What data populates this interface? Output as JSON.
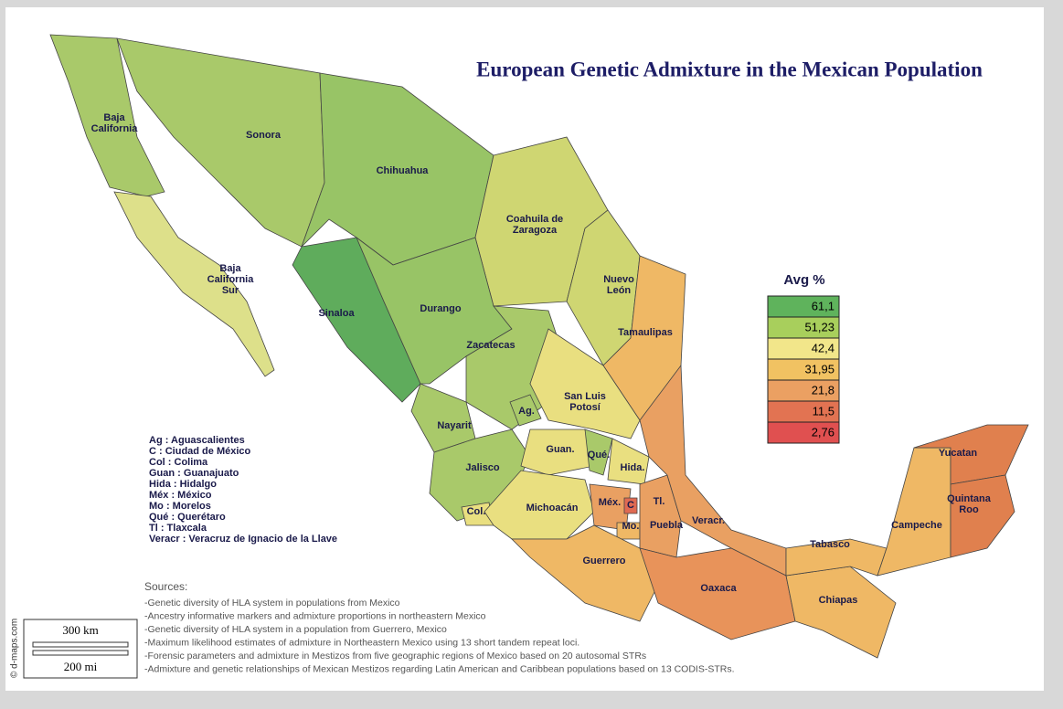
{
  "title": "European Genetic Admixture in the Mexican Population",
  "states": [
    {
      "lines": [
        "Baja",
        "California"
      ],
      "color": "#a9c96a"
    },
    {
      "lines": [
        "Baja",
        "California",
        "Sur"
      ],
      "color": "#dde08a"
    },
    {
      "lines": [
        "Sonora"
      ],
      "color": "#a9c96a"
    },
    {
      "lines": [
        "Chihuahua"
      ],
      "color": "#98c466"
    },
    {
      "lines": [
        "Coahuila de",
        "Zaragoza"
      ],
      "color": "#cfd672"
    },
    {
      "lines": [
        "Nuevo",
        "León"
      ],
      "color": "#cfd672"
    },
    {
      "lines": [
        "Tamaulipas"
      ],
      "color": "#efb865"
    },
    {
      "lines": [
        "Sinaloa"
      ],
      "color": "#5fac5c"
    },
    {
      "lines": [
        "Durango"
      ],
      "color": "#98c466"
    },
    {
      "lines": [
        "Zacatecas"
      ],
      "color": "#a9c96a"
    },
    {
      "lines": [
        "San Luis",
        "Potosí"
      ],
      "color": "#e9df80"
    },
    {
      "lines": [
        "Ag."
      ],
      "color": "#a9c96a"
    },
    {
      "lines": [
        "Nayarit"
      ],
      "color": "#a9c96a"
    },
    {
      "lines": [
        "Jalisco"
      ],
      "color": "#a9c96a"
    },
    {
      "lines": [
        "Guan."
      ],
      "color": "#e9df80"
    },
    {
      "lines": [
        "Qué."
      ],
      "color": "#a9c96a"
    },
    {
      "lines": [
        "Hida."
      ],
      "color": "#e9df80"
    },
    {
      "lines": [
        "Col."
      ],
      "color": "#e9df80"
    },
    {
      "lines": [
        "Michoacán"
      ],
      "color": "#e9df80"
    },
    {
      "lines": [
        "Méx."
      ],
      "color": "#e9a062"
    },
    {
      "lines": [
        "C"
      ],
      "color": "#e06a52"
    },
    {
      "lines": [
        "Tl."
      ],
      "color": "#e06a52"
    },
    {
      "lines": [
        "Mo."
      ],
      "color": "#efb865"
    },
    {
      "lines": [
        "Puebla"
      ],
      "color": "#e9a062"
    },
    {
      "lines": [
        "Veracr."
      ],
      "color": "#e9a062"
    },
    {
      "lines": [
        "Guerrero"
      ],
      "color": "#efb865"
    },
    {
      "lines": [
        "Oaxaca"
      ],
      "color": "#e8935a"
    },
    {
      "lines": [
        "Chiapas"
      ],
      "color": "#efb865"
    },
    {
      "lines": [
        "Tabasco"
      ],
      "color": "#efb865"
    },
    {
      "lines": [
        "Campeche"
      ],
      "color": "#efb865"
    },
    {
      "lines": [
        "Yucatan"
      ],
      "color": "#e0804e"
    },
    {
      "lines": [
        "Quintana",
        "Roo"
      ],
      "color": "#e0804e"
    }
  ],
  "legend": {
    "title": "Avg %",
    "items": [
      {
        "label": "61,1",
        "color": "#5fb35c"
      },
      {
        "label": "51,23",
        "color": "#a8cf5c"
      },
      {
        "label": "42,4",
        "color": "#f2e68a"
      },
      {
        "label": "31,95",
        "color": "#f1c262"
      },
      {
        "label": "21,8",
        "color": "#eba062"
      },
      {
        "label": "11,5",
        "color": "#e27352"
      },
      {
        "label": "2,76",
        "color": "#e05050"
      }
    ]
  },
  "key": [
    "Ag : Aguascalientes",
    "C : Ciudad de México",
    "Col : Colima",
    "Guan : Guanajuato",
    "Hida : Hidalgo",
    "Méx : México",
    "Mo : Morelos",
    "Qué : Querétaro",
    "Tl : Tlaxcala",
    "Veracr : Veracruz de Ignacio de la Llave"
  ],
  "sources": {
    "heading": "Sources:",
    "items": [
      "-Genetic diversity of HLA system in populations from Mexico",
      "-Ancestry informative markers and admixture proportions in northeastern Mexico",
      "-Genetic diversity of HLA system in a population from Guerrero, Mexico",
      "-Maximum likelihood estimates of admixture in Northeastern Mexico using 13 short tandem repeat loci.",
      "-Forensic parameters and admixture in Mestizos from five geographic regions of Mexico based on 20 autosomal STRs",
      "-Admixture and genetic relationships of Mexican Mestizos regarding Latin American and Caribbean populations based on 13 CODIS-STRs."
    ]
  },
  "scale": {
    "km": "300 km",
    "mi": "200 mi"
  },
  "credit": "© d-maps.com"
}
